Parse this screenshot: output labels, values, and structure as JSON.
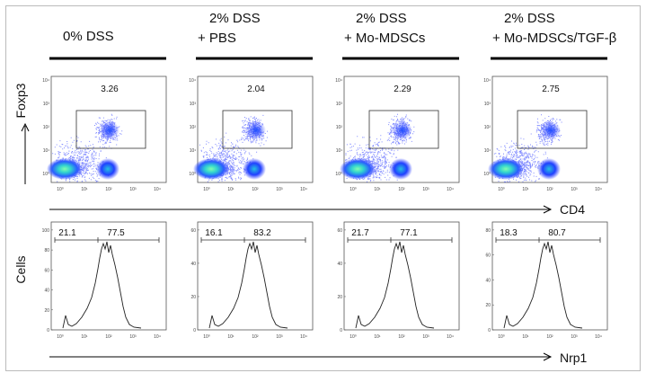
{
  "columns": [
    {
      "header": [
        "0% DSS"
      ],
      "dot_gate": 3.26,
      "hist_low": 21.1,
      "hist_high": 77.5,
      "hist_yticks": [
        0,
        20,
        40,
        60,
        80,
        100
      ]
    },
    {
      "header": [
        "2% DSS",
        "+ PBS"
      ],
      "dot_gate": 2.04,
      "hist_low": 16.1,
      "hist_high": 83.2,
      "hist_yticks": [
        0,
        20,
        40,
        60
      ]
    },
    {
      "header": [
        "2% DSS",
        "+ Mo-MDSCs"
      ],
      "dot_gate": 2.29,
      "hist_low": 21.7,
      "hist_high": 77.1,
      "hist_yticks": [
        0,
        20,
        40,
        60
      ]
    },
    {
      "header": [
        "2% DSS",
        "+ Mo-MDSCs/TGF-β"
      ],
      "dot_gate": 2.75,
      "hist_low": 18.3,
      "hist_high": 80.7,
      "hist_yticks": [
        0,
        20,
        40,
        60,
        80
      ]
    }
  ],
  "log_ticks": [
    "10⁰",
    "10¹",
    "10²",
    "10³",
    "10⁴"
  ],
  "axis_labels": {
    "y_top": "Foxp3",
    "x_top": "CD4",
    "y_bottom": "Cells",
    "x_bottom": "Nrp1"
  }
}
